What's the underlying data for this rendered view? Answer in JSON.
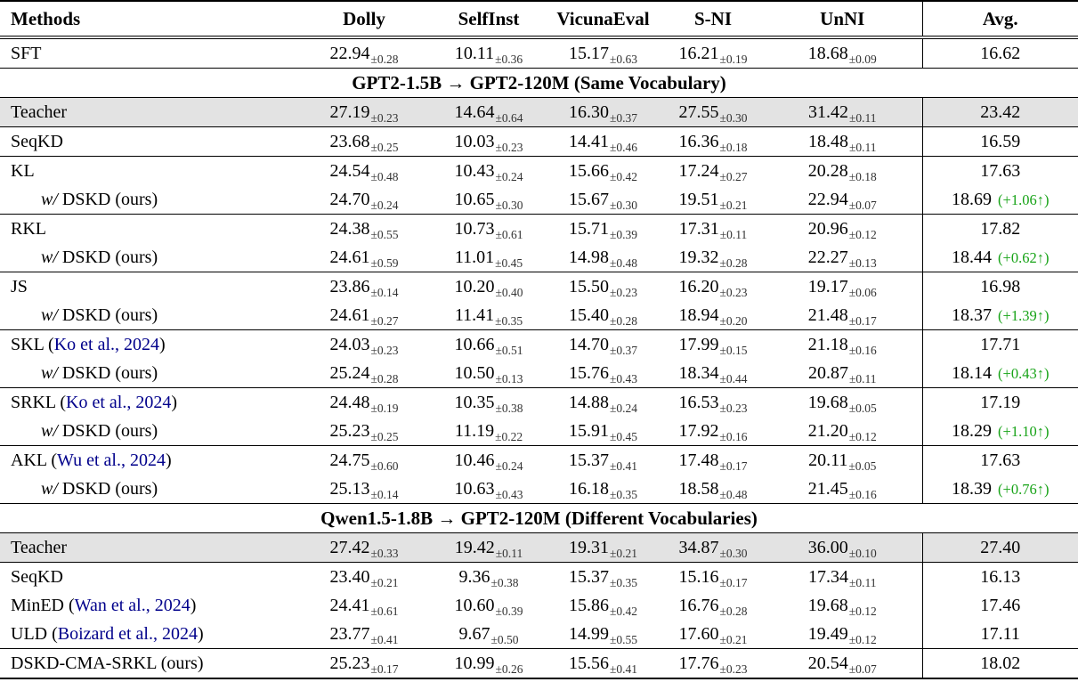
{
  "table": {
    "colors": {
      "improvement_green": "#17a317",
      "citation_blue": "#00008b",
      "teacher_row_bg": "#e3e3e3"
    },
    "columns": [
      "Methods",
      "Dolly",
      "SelfInst",
      "VicunaEval",
      "S-NI",
      "UnNI",
      "Avg."
    ],
    "rows": [
      {
        "type": "data",
        "method": {
          "text": "SFT"
        },
        "cells": [
          [
            "22.94",
            "±0.28"
          ],
          [
            "10.11",
            "±0.36"
          ],
          [
            "15.17",
            "±0.63"
          ],
          [
            "16.21",
            "±0.19"
          ],
          [
            "18.68",
            "±0.09"
          ]
        ],
        "avg": {
          "value": "16.62"
        },
        "rule_below": true
      },
      {
        "type": "section",
        "label": "GPT2-1.5B → GPT2-120M (Same Vocabulary)",
        "rule_below": true
      },
      {
        "type": "data",
        "shaded": true,
        "method": {
          "text": "Teacher"
        },
        "cells": [
          [
            "27.19",
            "±0.23"
          ],
          [
            "14.64",
            "±0.64"
          ],
          [
            "16.30",
            "±0.37"
          ],
          [
            "27.55",
            "±0.30"
          ],
          [
            "31.42",
            "±0.11"
          ]
        ],
        "avg": {
          "value": "23.42"
        },
        "rule_below": true
      },
      {
        "type": "data",
        "method": {
          "text": "SeqKD"
        },
        "cells": [
          [
            "23.68",
            "±0.25"
          ],
          [
            "10.03",
            "±0.23"
          ],
          [
            "14.41",
            "±0.46"
          ],
          [
            "16.36",
            "±0.18"
          ],
          [
            "18.48",
            "±0.11"
          ]
        ],
        "avg": {
          "value": "16.59"
        },
        "rule_below": true
      },
      {
        "type": "data",
        "method": {
          "text": "KL"
        },
        "cells": [
          [
            "24.54",
            "±0.48"
          ],
          [
            "10.43",
            "±0.24"
          ],
          [
            "15.66",
            "±0.42"
          ],
          [
            "17.24",
            "±0.27"
          ],
          [
            "20.28",
            "±0.18"
          ]
        ],
        "avg": {
          "value": "17.63"
        },
        "rule_below": false
      },
      {
        "type": "data",
        "method": {
          "italic": "w/",
          "text": " DSKD (ours)",
          "indent": true
        },
        "cells": [
          [
            "24.70",
            "±0.24"
          ],
          [
            "10.65",
            "±0.30"
          ],
          [
            "15.67",
            "±0.30"
          ],
          [
            "19.51",
            "±0.21"
          ],
          [
            "22.94",
            "±0.07"
          ]
        ],
        "avg": {
          "value": "18.69",
          "gain": "(+1.06↑)"
        },
        "rule_below": true
      },
      {
        "type": "data",
        "method": {
          "text": "RKL"
        },
        "cells": [
          [
            "24.38",
            "±0.55"
          ],
          [
            "10.73",
            "±0.61"
          ],
          [
            "15.71",
            "±0.39"
          ],
          [
            "17.31",
            "±0.11"
          ],
          [
            "20.96",
            "±0.12"
          ]
        ],
        "avg": {
          "value": "17.82"
        },
        "rule_below": false
      },
      {
        "type": "data",
        "method": {
          "italic": "w/",
          "text": " DSKD (ours)",
          "indent": true
        },
        "cells": [
          [
            "24.61",
            "±0.59"
          ],
          [
            "11.01",
            "±0.45"
          ],
          [
            "14.98",
            "±0.48"
          ],
          [
            "19.32",
            "±0.28"
          ],
          [
            "22.27",
            "±0.13"
          ]
        ],
        "avg": {
          "value": "18.44",
          "gain": "(+0.62↑)"
        },
        "rule_below": true
      },
      {
        "type": "data",
        "method": {
          "text": "JS"
        },
        "cells": [
          [
            "23.86",
            "±0.14"
          ],
          [
            "10.20",
            "±0.40"
          ],
          [
            "15.50",
            "±0.23"
          ],
          [
            "16.20",
            "±0.23"
          ],
          [
            "19.17",
            "±0.06"
          ]
        ],
        "avg": {
          "value": "16.98"
        },
        "rule_below": false
      },
      {
        "type": "data",
        "method": {
          "italic": "w/",
          "text": " DSKD (ours)",
          "indent": true
        },
        "cells": [
          [
            "24.61",
            "±0.27"
          ],
          [
            "11.41",
            "±0.35"
          ],
          [
            "15.40",
            "±0.28"
          ],
          [
            "18.94",
            "±0.20"
          ],
          [
            "21.48",
            "±0.17"
          ]
        ],
        "avg": {
          "value": "18.37",
          "gain": "(+1.39↑)"
        },
        "rule_below": true
      },
      {
        "type": "data",
        "method": {
          "text": "SKL (",
          "link": "Ko et al., 2024",
          "post": ")"
        },
        "cells": [
          [
            "24.03",
            "±0.23"
          ],
          [
            "10.66",
            "±0.51"
          ],
          [
            "14.70",
            "±0.37"
          ],
          [
            "17.99",
            "±0.15"
          ],
          [
            "21.18",
            "±0.16"
          ]
        ],
        "avg": {
          "value": "17.71"
        },
        "rule_below": false
      },
      {
        "type": "data",
        "method": {
          "italic": "w/",
          "text": " DSKD (ours)",
          "indent": true
        },
        "cells": [
          [
            "25.24",
            "±0.28"
          ],
          [
            "10.50",
            "±0.13"
          ],
          [
            "15.76",
            "±0.43"
          ],
          [
            "18.34",
            "±0.44"
          ],
          [
            "20.87",
            "±0.11"
          ]
        ],
        "avg": {
          "value": "18.14",
          "gain": "(+0.43↑)"
        },
        "rule_below": true
      },
      {
        "type": "data",
        "method": {
          "text": "SRKL (",
          "link": "Ko et al., 2024",
          "post": ")"
        },
        "cells": [
          [
            "24.48",
            "±0.19"
          ],
          [
            "10.35",
            "±0.38"
          ],
          [
            "14.88",
            "±0.24"
          ],
          [
            "16.53",
            "±0.23"
          ],
          [
            "19.68",
            "±0.05"
          ]
        ],
        "avg": {
          "value": "17.19"
        },
        "rule_below": false
      },
      {
        "type": "data",
        "method": {
          "italic": "w/",
          "text": " DSKD (ours)",
          "indent": true
        },
        "cells": [
          [
            "25.23",
            "±0.25"
          ],
          [
            "11.19",
            "±0.22"
          ],
          [
            "15.91",
            "±0.45"
          ],
          [
            "17.92",
            "±0.16"
          ],
          [
            "21.20",
            "±0.12"
          ]
        ],
        "avg": {
          "value": "18.29",
          "gain": "(+1.10↑)"
        },
        "rule_below": true
      },
      {
        "type": "data",
        "method": {
          "text": "AKL (",
          "link": "Wu et al., 2024",
          "post": ")"
        },
        "cells": [
          [
            "24.75",
            "±0.60"
          ],
          [
            "10.46",
            "±0.24"
          ],
          [
            "15.37",
            "±0.41"
          ],
          [
            "17.48",
            "±0.17"
          ],
          [
            "20.11",
            "±0.05"
          ]
        ],
        "avg": {
          "value": "17.63"
        },
        "rule_below": false
      },
      {
        "type": "data",
        "method": {
          "italic": "w/",
          "text": " DSKD (ours)",
          "indent": true
        },
        "cells": [
          [
            "25.13",
            "±0.14"
          ],
          [
            "10.63",
            "±0.43"
          ],
          [
            "16.18",
            "±0.35"
          ],
          [
            "18.58",
            "±0.48"
          ],
          [
            "21.45",
            "±0.16"
          ]
        ],
        "avg": {
          "value": "18.39",
          "gain": "(+0.76↑)"
        },
        "rule_below": true
      },
      {
        "type": "section",
        "label": "Qwen1.5-1.8B → GPT2-120M (Different Vocabularies)",
        "rule_below": true
      },
      {
        "type": "data",
        "shaded": true,
        "method": {
          "text": "Teacher"
        },
        "cells": [
          [
            "27.42",
            "±0.33"
          ],
          [
            "19.42",
            "±0.11"
          ],
          [
            "19.31",
            "±0.21"
          ],
          [
            "34.87",
            "±0.30"
          ],
          [
            "36.00",
            "±0.10"
          ]
        ],
        "avg": {
          "value": "27.40"
        },
        "rule_below": true
      },
      {
        "type": "data",
        "method": {
          "text": "SeqKD"
        },
        "cells": [
          [
            "23.40",
            "±0.21"
          ],
          [
            "9.36",
            "±0.38"
          ],
          [
            "15.37",
            "±0.35"
          ],
          [
            "15.16",
            "±0.17"
          ],
          [
            "17.34",
            "±0.11"
          ]
        ],
        "avg": {
          "value": "16.13"
        },
        "rule_below": false
      },
      {
        "type": "data",
        "method": {
          "text": "MinED (",
          "link": "Wan et al., 2024",
          "post": ")"
        },
        "cells": [
          [
            "24.41",
            "±0.61"
          ],
          [
            "10.60",
            "±0.39"
          ],
          [
            "15.86",
            "±0.42"
          ],
          [
            "16.76",
            "±0.28"
          ],
          [
            "19.68",
            "±0.12"
          ]
        ],
        "avg": {
          "value": "17.46"
        },
        "rule_below": false
      },
      {
        "type": "data",
        "method": {
          "text": "ULD (",
          "link": "Boizard et al., 2024",
          "post": ")"
        },
        "cells": [
          [
            "23.77",
            "±0.41"
          ],
          [
            "9.67",
            "±0.50"
          ],
          [
            "14.99",
            "±0.55"
          ],
          [
            "17.60",
            "±0.21"
          ],
          [
            "19.49",
            "±0.12"
          ]
        ],
        "avg": {
          "value": "17.11"
        },
        "rule_below": true
      },
      {
        "type": "data",
        "method": {
          "text": "DSKD-CMA-SRKL (ours)"
        },
        "cells": [
          [
            "25.23",
            "±0.17"
          ],
          [
            "10.99",
            "±0.26"
          ],
          [
            "15.56",
            "±0.41"
          ],
          [
            "17.76",
            "±0.23"
          ],
          [
            "20.54",
            "±0.07"
          ]
        ],
        "avg": {
          "value": "18.02"
        },
        "rule_below": false
      }
    ]
  }
}
